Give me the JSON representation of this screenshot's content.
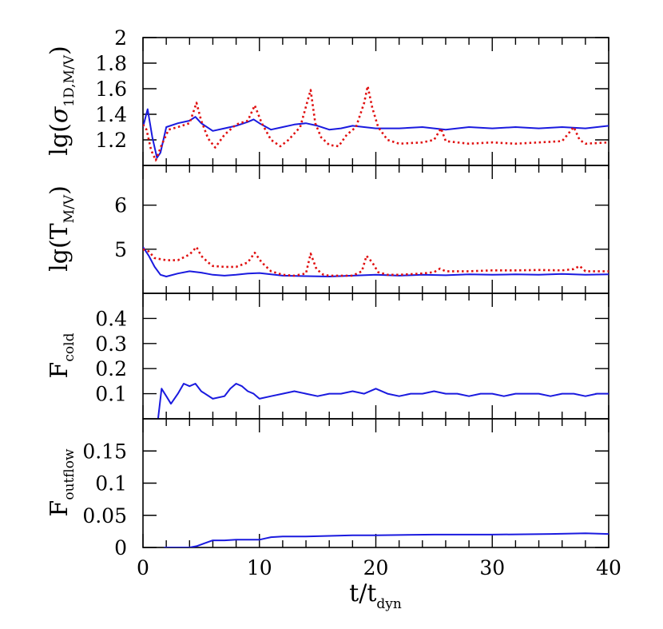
{
  "chart_data": {
    "type": "line",
    "shared_x": {
      "label": "t/t",
      "label_sub": "dyn",
      "range": [
        0,
        40
      ],
      "ticks": [
        "0",
        "10",
        "20",
        "30",
        "40"
      ]
    },
    "panels": [
      {
        "id": "sigma",
        "ylabel": {
          "pre": "lg(",
          "sym": "σ",
          "sub": "1D,M/V",
          "post": ")"
        },
        "ylim": [
          1.0,
          2.0
        ],
        "ytick_values": [
          1.2,
          1.4,
          1.6,
          1.8,
          2.0
        ],
        "ytick_labels": [
          "1.2",
          "1.4",
          "1.6",
          "1.8",
          "2"
        ],
        "series": [
          {
            "style": "solid",
            "color": "#1a1adf",
            "x": [
              0,
              0.4,
              0.8,
              1.2,
              1.5,
              2.0,
              3,
              4,
              4.5,
              5,
              6,
              7,
              8,
              9,
              9.5,
              10,
              11,
              12,
              13,
              14,
              15,
              16,
              17,
              18,
              19,
              20,
              22,
              24,
              26,
              28,
              30,
              32,
              34,
              36,
              38,
              40
            ],
            "y": [
              1.3,
              1.44,
              1.22,
              1.06,
              1.1,
              1.3,
              1.33,
              1.35,
              1.38,
              1.33,
              1.27,
              1.29,
              1.31,
              1.34,
              1.36,
              1.33,
              1.28,
              1.3,
              1.32,
              1.33,
              1.31,
              1.28,
              1.29,
              1.31,
              1.3,
              1.29,
              1.29,
              1.3,
              1.28,
              1.3,
              1.29,
              1.3,
              1.29,
              1.3,
              1.29,
              1.31
            ]
          },
          {
            "style": "dotted",
            "color": "#e01010",
            "x": [
              0,
              0.3,
              0.7,
              1.1,
              1.6,
              2.2,
              3,
              4,
              4.6,
              5,
              5.6,
              6.2,
              7,
              8,
              9,
              9.6,
              10.2,
              11,
              11.8,
              12.5,
              13.5,
              14.4,
              14.8,
              15.3,
              16,
              16.8,
              17.5,
              18.3,
              19.0,
              19.3,
              19.7,
              20.2,
              21,
              22,
              24,
              25,
              25.6,
              26,
              28,
              30,
              32,
              34,
              36,
              37,
              37.5,
              38,
              40
            ],
            "y": [
              1.32,
              1.28,
              1.12,
              1.04,
              1.16,
              1.28,
              1.3,
              1.33,
              1.49,
              1.35,
              1.21,
              1.14,
              1.24,
              1.32,
              1.35,
              1.47,
              1.33,
              1.2,
              1.15,
              1.2,
              1.3,
              1.59,
              1.33,
              1.22,
              1.16,
              1.15,
              1.24,
              1.3,
              1.49,
              1.62,
              1.45,
              1.3,
              1.2,
              1.17,
              1.18,
              1.2,
              1.29,
              1.19,
              1.17,
              1.18,
              1.17,
              1.18,
              1.19,
              1.3,
              1.2,
              1.17,
              1.18
            ]
          }
        ]
      },
      {
        "id": "temperature",
        "ylabel": {
          "pre": "lg(T",
          "sub": "M/V",
          "post": ")"
        },
        "ylim": [
          4.0,
          6.9
        ],
        "ytick_values": [
          5,
          6
        ],
        "ytick_labels": [
          "5",
          "6"
        ],
        "series": [
          {
            "style": "solid",
            "color": "#1a1adf",
            "x": [
              0,
              0.5,
              1.0,
              1.5,
              2.0,
              3,
              4,
              5,
              6,
              7,
              8,
              9,
              10,
              12,
              14,
              16,
              18,
              20,
              22,
              24,
              26,
              28,
              30,
              32,
              34,
              36,
              38,
              40
            ],
            "y": [
              5.05,
              4.85,
              4.6,
              4.42,
              4.38,
              4.45,
              4.5,
              4.47,
              4.42,
              4.4,
              4.42,
              4.45,
              4.46,
              4.4,
              4.39,
              4.38,
              4.4,
              4.42,
              4.4,
              4.42,
              4.41,
              4.43,
              4.42,
              4.43,
              4.42,
              4.44,
              4.42,
              4.43
            ]
          },
          {
            "style": "dotted",
            "color": "#e01010",
            "x": [
              0,
              0.5,
              1.0,
              2,
              3,
              4,
              4.6,
              5,
              5.6,
              6,
              7,
              8,
              9,
              9.6,
              10.2,
              11,
              12,
              13,
              14,
              14.4,
              14.9,
              15.5,
              16,
              17,
              18,
              18.8,
              19.2,
              19.7,
              20.2,
              21,
              22,
              24,
              25,
              25.5,
              26,
              28,
              30,
              32,
              34,
              36,
              37,
              37.5,
              38,
              40
            ],
            "y": [
              5.0,
              4.95,
              4.8,
              4.75,
              4.75,
              4.88,
              5.05,
              4.85,
              4.7,
              4.62,
              4.6,
              4.6,
              4.7,
              4.92,
              4.7,
              4.5,
              4.42,
              4.4,
              4.45,
              4.9,
              4.55,
              4.42,
              4.4,
              4.4,
              4.4,
              4.5,
              4.85,
              4.7,
              4.48,
              4.42,
              4.42,
              4.45,
              4.48,
              4.56,
              4.5,
              4.5,
              4.52,
              4.52,
              4.53,
              4.52,
              4.55,
              4.62,
              4.5,
              4.5
            ]
          }
        ]
      },
      {
        "id": "cold",
        "ylabel": {
          "pre": "F",
          "sub": "cold",
          "post": ""
        },
        "ylim": [
          0.0,
          0.5
        ],
        "ytick_values": [
          0.1,
          0.2,
          0.3,
          0.4
        ],
        "ytick_labels": [
          "0.1",
          "0.2",
          "0.3",
          "0.4"
        ],
        "series": [
          {
            "style": "solid",
            "color": "#1a1adf",
            "x": [
              1.3,
              1.6,
              2.0,
              2.4,
              3.0,
              3.5,
              4.0,
              4.5,
              5,
              6,
              7,
              7.5,
              8,
              8.5,
              9,
              9.5,
              10,
              11,
              12,
              13,
              14,
              15,
              16,
              17,
              18,
              19,
              20,
              21,
              22,
              23,
              24,
              25,
              26,
              27,
              28,
              29,
              30,
              31,
              32,
              33,
              34,
              35,
              36,
              37,
              38,
              39,
              40
            ],
            "y": [
              0.0,
              0.12,
              0.09,
              0.06,
              0.1,
              0.14,
              0.13,
              0.14,
              0.11,
              0.08,
              0.09,
              0.12,
              0.14,
              0.13,
              0.11,
              0.1,
              0.08,
              0.09,
              0.1,
              0.11,
              0.1,
              0.09,
              0.1,
              0.1,
              0.11,
              0.1,
              0.12,
              0.1,
              0.09,
              0.1,
              0.1,
              0.11,
              0.1,
              0.1,
              0.09,
              0.1,
              0.1,
              0.09,
              0.1,
              0.1,
              0.1,
              0.09,
              0.1,
              0.1,
              0.09,
              0.1,
              0.1
            ]
          }
        ]
      },
      {
        "id": "outflow",
        "ylabel": {
          "pre": "F",
          "sub": "outflow",
          "post": ""
        },
        "ylim": [
          0.0,
          0.2
        ],
        "ytick_values": [
          0,
          0.05,
          0.1,
          0.15
        ],
        "ytick_labels": [
          "0",
          "0.05",
          "0.1",
          "0.15"
        ],
        "series": [
          {
            "style": "solid",
            "color": "#1a1adf",
            "x": [
              1.8,
              3,
              4,
              4.6,
              5.2,
              6,
              7,
              8,
              9,
              10,
              10.5,
              11,
              12,
              14,
              16,
              18,
              20,
              25,
              30,
              35,
              38,
              40
            ],
            "y": [
              0.0,
              0.0,
              0.0,
              0.002,
              0.006,
              0.011,
              0.011,
              0.012,
              0.012,
              0.012,
              0.014,
              0.016,
              0.017,
              0.017,
              0.018,
              0.019,
              0.019,
              0.02,
              0.02,
              0.021,
              0.022,
              0.021
            ]
          }
        ]
      }
    ]
  }
}
